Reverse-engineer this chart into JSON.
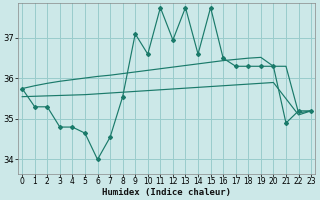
{
  "xlabel": "Humidex (Indice chaleur)",
  "background_color": "#cce8e8",
  "grid_color": "#99cccc",
  "line_color": "#1a7a6a",
  "xlim": [
    -0.3,
    23.3
  ],
  "ylim": [
    33.65,
    37.85
  ],
  "yticks": [
    34,
    35,
    36,
    37
  ],
  "xticks": [
    0,
    1,
    2,
    3,
    4,
    5,
    6,
    7,
    8,
    9,
    10,
    11,
    12,
    13,
    14,
    15,
    16,
    17,
    18,
    19,
    20,
    21,
    22,
    23
  ],
  "series1_x": [
    0,
    1,
    2,
    3,
    4,
    5,
    6,
    7,
    8,
    9,
    10,
    11,
    12,
    13,
    14,
    15,
    16,
    17,
    18,
    19,
    20,
    21,
    22,
    23
  ],
  "series1_y": [
    35.75,
    35.3,
    35.3,
    34.8,
    34.8,
    34.65,
    34.0,
    34.55,
    35.55,
    37.1,
    36.6,
    37.75,
    36.95,
    37.75,
    36.6,
    37.75,
    36.5,
    36.3,
    36.3,
    36.3,
    36.3,
    34.9,
    35.2,
    35.2
  ],
  "trend_upper_x": [
    0,
    1,
    2,
    3,
    4,
    5,
    6,
    7,
    8,
    9,
    10,
    11,
    12,
    13,
    14,
    15,
    16,
    17,
    18,
    19,
    20,
    21,
    22,
    23
  ],
  "trend_upper_y": [
    35.75,
    35.82,
    35.88,
    35.93,
    35.97,
    36.01,
    36.05,
    36.08,
    36.12,
    36.16,
    36.2,
    36.24,
    36.28,
    36.32,
    36.36,
    36.4,
    36.44,
    36.47,
    36.5,
    36.52,
    36.3,
    36.3,
    35.15,
    35.2
  ],
  "trend_lower_x": [
    0,
    5,
    10,
    15,
    20,
    22,
    23
  ],
  "trend_lower_y": [
    35.55,
    35.6,
    35.7,
    35.8,
    35.9,
    35.1,
    35.2
  ]
}
